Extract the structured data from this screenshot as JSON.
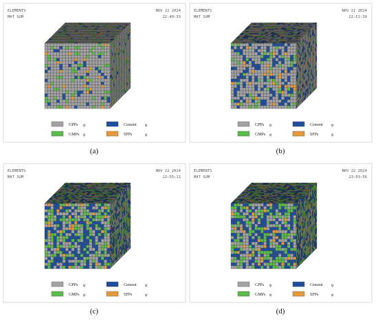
{
  "panels": [
    {
      "caption": "(a)",
      "header": {
        "line1": "ELEMENTS",
        "line2": "MAT  SUM",
        "date": "NOV 22 2024",
        "time": "22:40:33"
      },
      "legend": [
        {
          "label": "GPPs",
          "symbol": "φ",
          "color": "#a3a3a3"
        },
        {
          "label": "Cement",
          "symbol": "φ",
          "color": "#1f4e9c"
        },
        {
          "label": "GMPs",
          "symbol": "φ",
          "color": "#5dbb4c"
        },
        {
          "label": "SFPs",
          "symbol": "φ",
          "color": "#e39a3b"
        }
      ]
    },
    {
      "caption": "(b)",
      "header": {
        "line1": "ELEMENTS",
        "line2": "MAT  SUM",
        "date": "NOV 22 2024",
        "time": "22:51:39"
      },
      "legend": [
        {
          "label": "GPPs",
          "symbol": "φ",
          "color": "#a3a3a3"
        },
        {
          "label": "Cement",
          "symbol": "φ",
          "color": "#1f4e9c"
        },
        {
          "label": "GMPs",
          "symbol": "φ",
          "color": "#5dbb4c"
        },
        {
          "label": "SFPs",
          "symbol": "φ",
          "color": "#e39a3b"
        }
      ]
    },
    {
      "caption": "(c)",
      "header": {
        "line1": "ELEMENTS",
        "line2": "MAT  SUM",
        "date": "NOV 22 2024",
        "time": "22:55:11"
      },
      "legend": [
        {
          "label": "GPPs",
          "symbol": "φ",
          "color": "#a3a3a3"
        },
        {
          "label": "Cement",
          "symbol": "φ",
          "color": "#1f4e9c"
        },
        {
          "label": "GMPs",
          "symbol": "φ",
          "color": "#5dbb4c"
        },
        {
          "label": "SFPs",
          "symbol": "φ",
          "color": "#e39a3b"
        }
      ]
    },
    {
      "caption": "(d)",
      "header": {
        "line1": "ELEMENTS",
        "line2": "MAT  SUM",
        "date": "NOV 22 2024",
        "time": "23:03:56"
      },
      "legend": [
        {
          "label": "GPPs",
          "symbol": "φ",
          "color": "#a3a3a3"
        },
        {
          "label": "Cement",
          "symbol": "φ",
          "color": "#1f4e9c"
        },
        {
          "label": "GMPs",
          "symbol": "φ",
          "color": "#5dbb4c"
        },
        {
          "label": "SFPs",
          "symbol": "φ",
          "color": "#e39a3b"
        }
      ]
    }
  ]
}
